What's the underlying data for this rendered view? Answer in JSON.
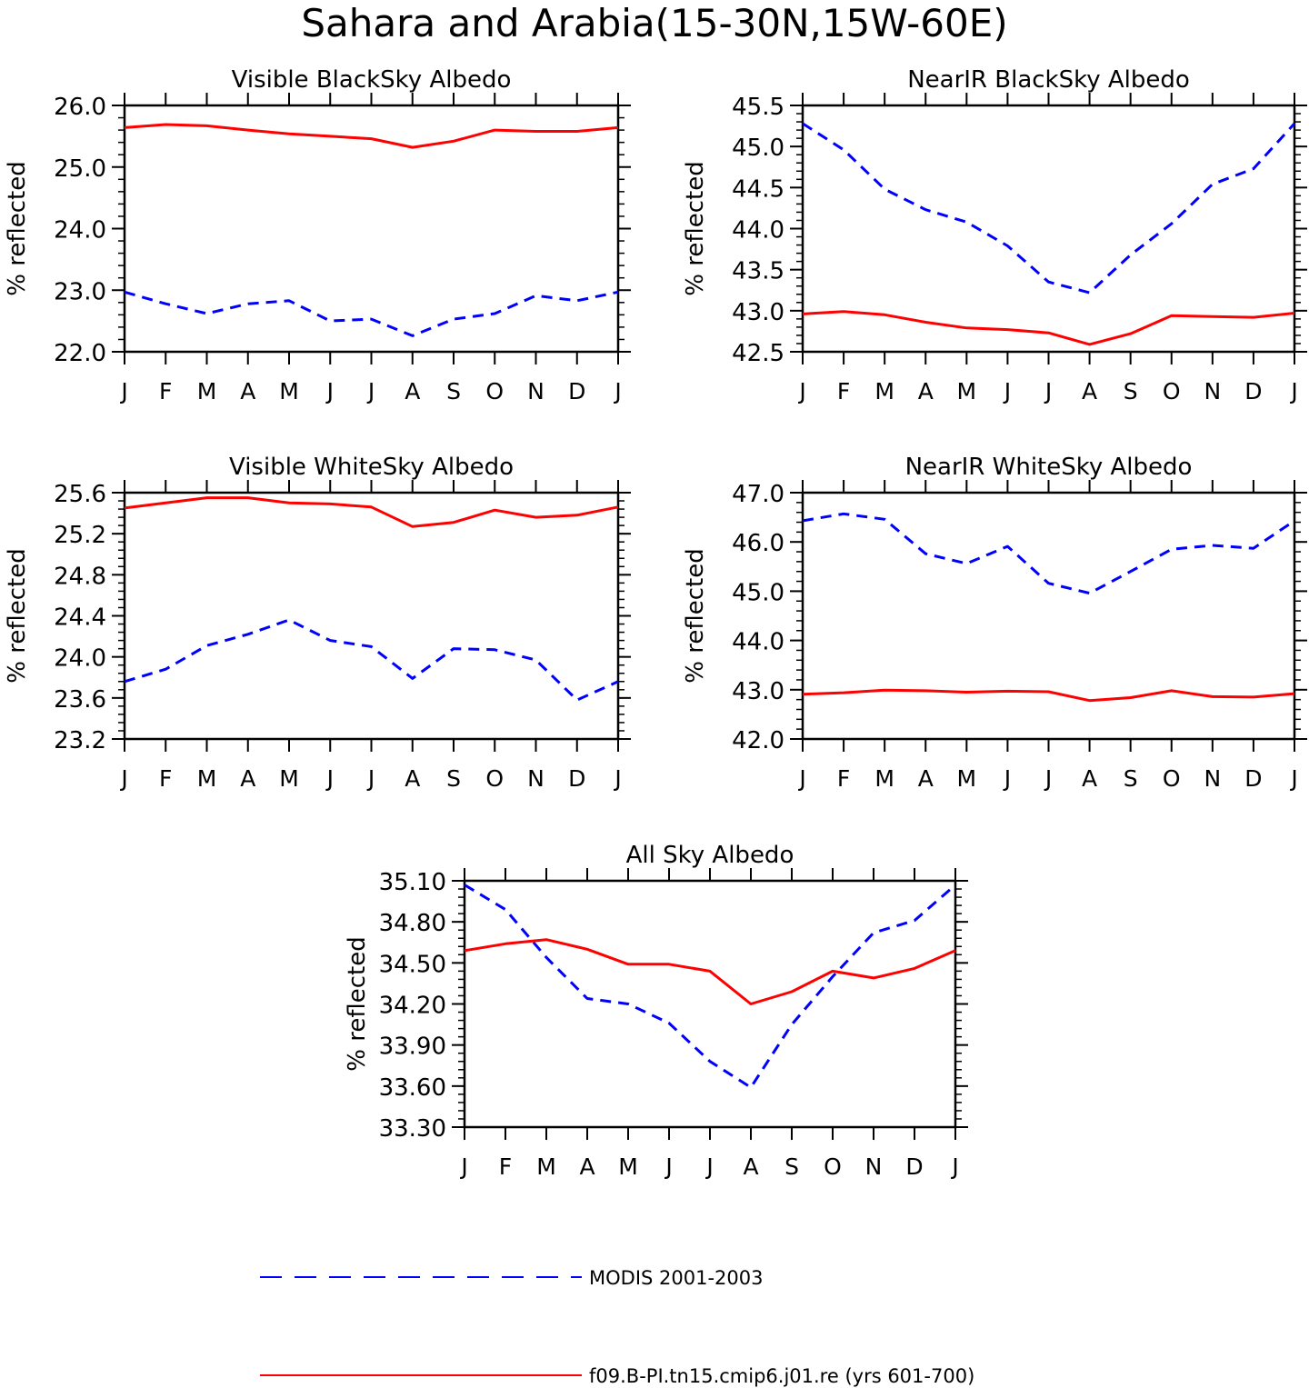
{
  "figure": {
    "title": "Sahara and Arabia(15-30N,15W-60E)",
    "legend": [
      {
        "label": "MODIS 2001-2003",
        "color": "#0000ff",
        "style": "dashed"
      },
      {
        "label": "f09.B-PI.tn15.cmip6.j01.re (yrs 601-700)",
        "color": "#ff0000",
        "style": "solid"
      }
    ]
  },
  "chart_data": [
    {
      "type": "line",
      "title": "Visible BlackSky Albedo",
      "ylabel": "% reflected",
      "x": [
        "J",
        "F",
        "M",
        "A",
        "M",
        "J",
        "J",
        "A",
        "S",
        "O",
        "N",
        "D",
        "J"
      ],
      "ylim": [
        22.0,
        26.0
      ],
      "yticks": [
        "22.0",
        "23.0",
        "24.0",
        "25.0",
        "26.0"
      ],
      "y_minor_step": 0.2,
      "series": [
        {
          "name": "MODIS 2001-2003",
          "color": "#0000ff",
          "style": "dashed",
          "values": [
            22.97,
            22.78,
            22.62,
            22.78,
            22.83,
            22.5,
            22.53,
            22.26,
            22.53,
            22.62,
            22.91,
            22.83,
            22.97
          ]
        },
        {
          "name": "f09.B-PI.tn15.cmip6.j01.re (yrs 601-700)",
          "color": "#ff0000",
          "style": "solid",
          "values": [
            25.64,
            25.69,
            25.67,
            25.6,
            25.54,
            25.5,
            25.46,
            25.32,
            25.42,
            25.6,
            25.58,
            25.58,
            25.64
          ]
        }
      ]
    },
    {
      "type": "line",
      "title": "NearIR BlackSky Albedo",
      "ylabel": "% reflected",
      "x": [
        "J",
        "F",
        "M",
        "A",
        "M",
        "J",
        "J",
        "A",
        "S",
        "O",
        "N",
        "D",
        "J"
      ],
      "ylim": [
        42.5,
        45.5
      ],
      "yticks": [
        "42.5",
        "43.0",
        "43.5",
        "44.0",
        "44.5",
        "45.0",
        "45.5"
      ],
      "y_minor_step": 0.1,
      "series": [
        {
          "name": "MODIS 2001-2003",
          "color": "#0000ff",
          "style": "dashed",
          "values": [
            45.28,
            44.96,
            44.48,
            44.23,
            44.08,
            43.79,
            43.35,
            43.22,
            43.68,
            44.06,
            44.54,
            44.73,
            45.28
          ]
        },
        {
          "name": "f09.B-PI.tn15.cmip6.j01.re (yrs 601-700)",
          "color": "#ff0000",
          "style": "solid",
          "values": [
            42.96,
            42.99,
            42.95,
            42.86,
            42.79,
            42.77,
            42.73,
            42.59,
            42.72,
            42.94,
            42.93,
            42.92,
            42.97
          ]
        }
      ]
    },
    {
      "type": "line",
      "title": "Visible WhiteSky Albedo",
      "ylabel": "% reflected",
      "x": [
        "J",
        "F",
        "M",
        "A",
        "M",
        "J",
        "J",
        "A",
        "S",
        "O",
        "N",
        "D",
        "J"
      ],
      "ylim": [
        23.2,
        25.6
      ],
      "yticks": [
        "23.2",
        "23.6",
        "24.0",
        "24.4",
        "24.8",
        "25.2",
        "25.6"
      ],
      "y_minor_step": 0.08,
      "series": [
        {
          "name": "MODIS 2001-2003",
          "color": "#0000ff",
          "style": "dashed",
          "values": [
            23.76,
            23.88,
            24.11,
            24.22,
            24.36,
            24.16,
            24.1,
            23.79,
            24.08,
            24.07,
            23.97,
            23.58,
            23.76
          ]
        },
        {
          "name": "f09.B-PI.tn15.cmip6.j01.re (yrs 601-700)",
          "color": "#ff0000",
          "style": "solid",
          "values": [
            25.45,
            25.5,
            25.55,
            25.55,
            25.5,
            25.49,
            25.46,
            25.27,
            25.31,
            25.43,
            25.36,
            25.38,
            25.46
          ]
        }
      ]
    },
    {
      "type": "line",
      "title": "NearIR WhiteSky Albedo",
      "ylabel": "% reflected",
      "x": [
        "J",
        "F",
        "M",
        "A",
        "M",
        "J",
        "J",
        "A",
        "S",
        "O",
        "N",
        "D",
        "J"
      ],
      "ylim": [
        42.0,
        47.0
      ],
      "yticks": [
        "42.0",
        "43.0",
        "44.0",
        "45.0",
        "46.0",
        "47.0"
      ],
      "y_minor_step": 0.2,
      "series": [
        {
          "name": "MODIS 2001-2003",
          "color": "#0000ff",
          "style": "dashed",
          "values": [
            46.43,
            46.57,
            46.46,
            45.76,
            45.56,
            45.91,
            45.16,
            44.96,
            45.4,
            45.85,
            45.93,
            45.87,
            46.43
          ]
        },
        {
          "name": "f09.B-PI.tn15.cmip6.j01.re (yrs 601-700)",
          "color": "#ff0000",
          "style": "solid",
          "values": [
            42.91,
            42.94,
            42.99,
            42.98,
            42.95,
            42.97,
            42.96,
            42.78,
            42.84,
            42.98,
            42.86,
            42.85,
            42.92
          ]
        }
      ]
    },
    {
      "type": "line",
      "title": "All Sky Albedo",
      "ylabel": "% reflected",
      "x": [
        "J",
        "F",
        "M",
        "A",
        "M",
        "J",
        "J",
        "A",
        "S",
        "O",
        "N",
        "D",
        "J"
      ],
      "ylim": [
        33.3,
        35.1
      ],
      "yticks": [
        "33.30",
        "33.60",
        "33.90",
        "34.20",
        "34.50",
        "34.80",
        "35.10"
      ],
      "y_minor_step": 0.06,
      "series": [
        {
          "name": "MODIS 2001-2003",
          "color": "#0000ff",
          "style": "dashed",
          "values": [
            35.07,
            34.89,
            34.54,
            34.24,
            34.2,
            34.06,
            33.78,
            33.59,
            34.05,
            34.4,
            34.72,
            34.81,
            35.07
          ]
        },
        {
          "name": "f09.B-PI.tn15.cmip6.j01.re (yrs 601-700)",
          "color": "#ff0000",
          "style": "solid",
          "values": [
            34.59,
            34.64,
            34.67,
            34.6,
            34.49,
            34.49,
            34.44,
            34.2,
            34.29,
            34.44,
            34.39,
            34.46,
            34.59
          ]
        }
      ]
    }
  ]
}
